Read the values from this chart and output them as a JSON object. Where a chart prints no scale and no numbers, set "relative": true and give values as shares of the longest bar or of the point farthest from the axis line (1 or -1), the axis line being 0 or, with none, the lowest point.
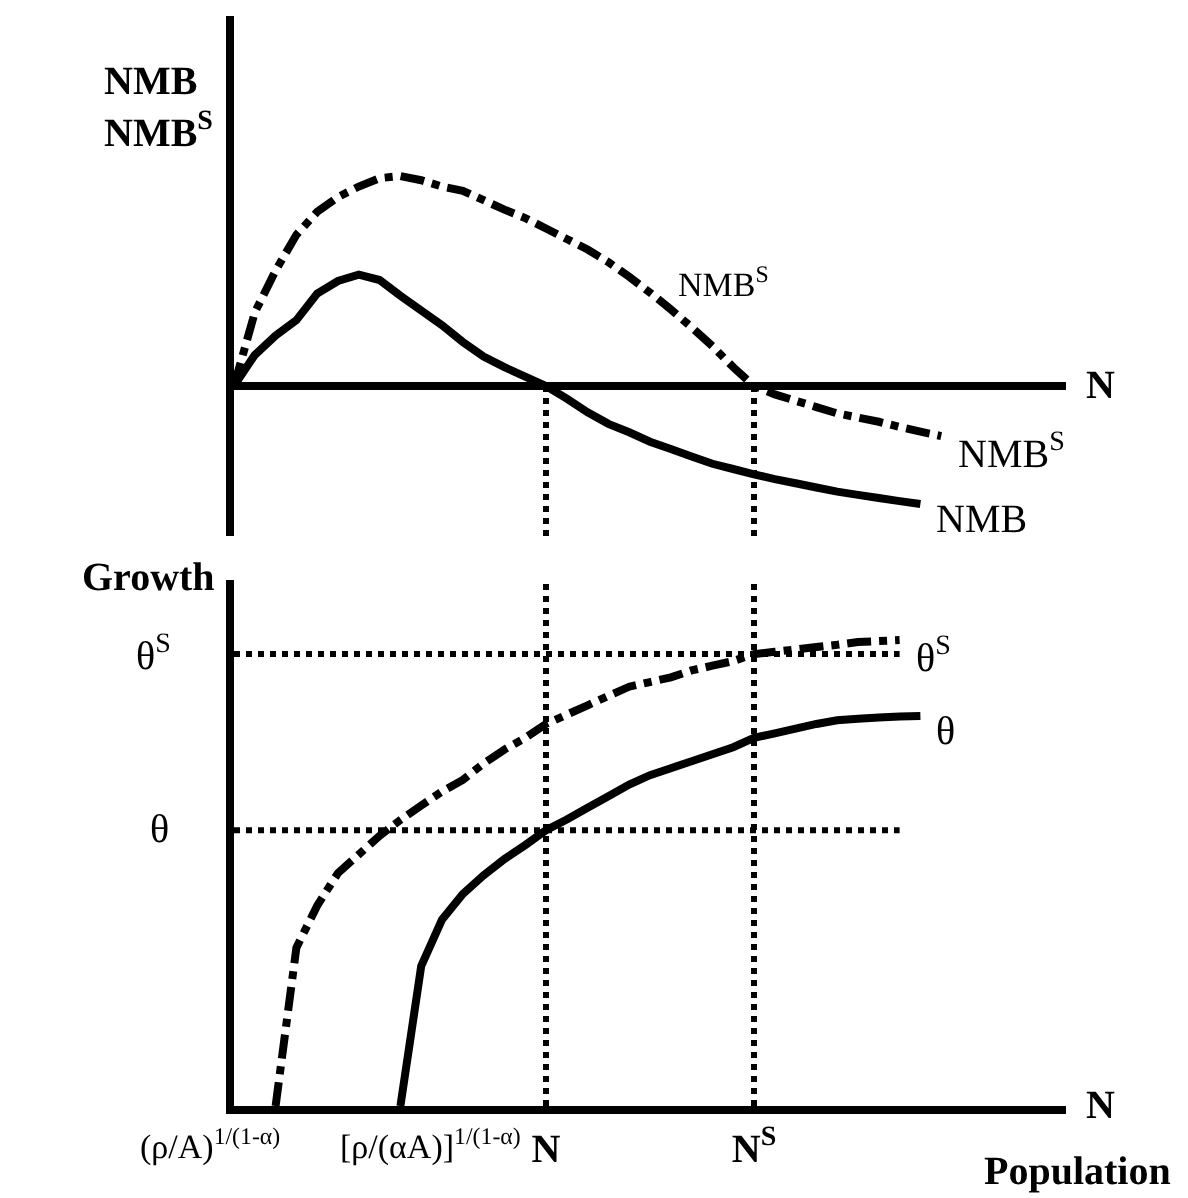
{
  "chart_data": [
    {
      "type": "line",
      "relative": true,
      "ylabel": "NMB NMB$^{S}$",
      "xlabel": "N",
      "tick_labels": false,
      "grid": false,
      "legend": false,
      "marker": "none",
      "categories": [
        null,
        null,
        null,
        null,
        null,
        null,
        null,
        null,
        null,
        null,
        null,
        null,
        null,
        null,
        null,
        "N",
        null,
        null,
        null,
        null,
        null,
        null,
        null,
        null,
        null,
        "N$^{S}$",
        null,
        null,
        null,
        null,
        null,
        null,
        null,
        null,
        null,
        null,
        null,
        null,
        null,
        null,
        null
      ],
      "series": [
        {
          "name": "NMB$^{S}$",
          "color": "#000000",
          "line_style": "dashdot",
          "values": [
            0,
            0.35,
            0.55,
            0.72,
            0.83,
            0.9,
            0.95,
            0.99,
            1.0,
            0.98,
            0.95,
            0.93,
            0.885,
            0.84,
            0.8,
            0.75,
            0.7,
            0.65,
            0.59,
            0.52,
            0.445,
            0.365,
            0.28,
            0.19,
            0.09,
            0,
            -0.04,
            -0.07,
            -0.1,
            -0.13,
            -0.15,
            -0.17,
            -0.195,
            -0.217,
            -0.238,
            null,
            null,
            null,
            null,
            null,
            null
          ]
        },
        {
          "name": "NMB",
          "color": "#000000",
          "line_style": "solid",
          "values": [
            0,
            0.148,
            0.24,
            0.314,
            0.44,
            0.5,
            0.53,
            0.505,
            0.43,
            0.36,
            0.29,
            0.21,
            0.14,
            0.09,
            0.045,
            0,
            -0.06,
            -0.125,
            -0.18,
            -0.22,
            -0.265,
            -0.3,
            -0.335,
            -0.37,
            -0.395,
            -0.42,
            -0.443,
            -0.463,
            -0.483,
            -0.503,
            -0.518,
            -0.533,
            -0.548,
            -0.562,
            null,
            null,
            null,
            null,
            null,
            null,
            null
          ]
        }
      ],
      "ref_lines": [
        {
          "axis": "x",
          "value": "N",
          "line_style": "dotted",
          "color": "#000000"
        },
        {
          "axis": "x",
          "value": "N$^{S}$",
          "line_style": "dotted",
          "color": "#000000"
        }
      ],
      "annotations": [
        "NMB$^{S}$"
      ]
    },
    {
      "type": "line",
      "relative": true,
      "ylabel": "Growth",
      "xlabel": "N",
      "tick_labels": "x",
      "grid": false,
      "legend": false,
      "marker": "none",
      "categories": [
        null,
        null,
        null,
        null,
        null,
        null,
        null,
        null,
        null,
        null,
        null,
        null,
        null,
        null,
        null,
        "N",
        null,
        null,
        null,
        null,
        null,
        null,
        null,
        null,
        null,
        "N$^{S}$",
        null,
        null,
        null,
        null,
        null,
        null,
        null,
        null,
        null,
        null,
        null,
        null,
        null,
        null,
        null
      ],
      "series": [
        {
          "name": "θ$^{S}$",
          "color": "#000000",
          "line_style": "dashdot",
          "values": [
            null,
            null,
            0,
            0.34,
            0.43,
            0.5,
            0.54,
            0.58,
            0.614,
            0.645,
            0.675,
            0.7,
            0.735,
            0.765,
            0.79,
            0.82,
            0.84,
            0.86,
            0.88,
            0.9,
            0.91,
            0.92,
            0.935,
            0.945,
            0.955,
            0.97,
            0.975,
            0.98,
            0.985,
            0.99,
            0.996,
            0.998,
            1.0,
            null,
            null,
            null,
            null,
            null,
            null,
            null,
            null
          ]
        },
        {
          "name": "θ",
          "color": "#000000",
          "line_style": "solid",
          "values": [
            null,
            null,
            null,
            null,
            null,
            null,
            null,
            null,
            0,
            0.3,
            0.4,
            0.455,
            0.495,
            0.53,
            0.56,
            0.592,
            0.615,
            0.64,
            0.665,
            0.69,
            0.71,
            0.725,
            0.74,
            0.755,
            0.77,
            0.79,
            0.8,
            0.81,
            0.82,
            0.828,
            0.831,
            0.834,
            0.836,
            0.837,
            null,
            null,
            null,
            null,
            null,
            null,
            null
          ]
        }
      ],
      "ref_lines": [
        {
          "axis": "x",
          "value": "N",
          "line_style": "dotted",
          "color": "#000000"
        },
        {
          "axis": "x",
          "value": "N$^{S}$",
          "line_style": "dotted",
          "color": "#000000"
        },
        {
          "axis": "y",
          "value": 0.97,
          "label": "θ$^{S}$",
          "line_style": "dotted",
          "color": "#000000"
        },
        {
          "axis": "y",
          "value": 0.592,
          "label": "θ",
          "line_style": "dotted",
          "color": "#000000"
        }
      ],
      "annotations": [
        "(ρ/A)$^{1/(1-α)}$",
        "[ρ/(αA)]$^{1/(1-α)}$",
        "Population"
      ]
    }
  ]
}
